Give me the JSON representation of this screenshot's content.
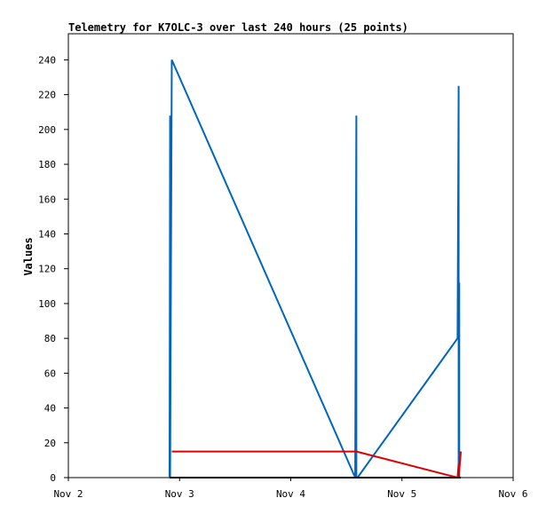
{
  "chart_data": {
    "type": "line",
    "title": "Telemetry for K7OLC-3 over last 240 hours (25 points)",
    "xlabel": "",
    "ylabel": "Values",
    "x_ticks": [
      "Nov 2",
      "Nov 3",
      "Nov 4",
      "Nov 5",
      "Nov 6"
    ],
    "y_ticks": [
      0,
      20,
      40,
      60,
      80,
      100,
      120,
      140,
      160,
      180,
      200,
      220,
      240
    ],
    "xlim": [
      0,
      4
    ],
    "ylim": [
      0,
      255
    ],
    "grid": false,
    "legend": "none",
    "series": [
      {
        "color": "#0066bb",
        "x": [
          0.91,
          0.915,
          0.915,
          0.93,
          2.58,
          2.59,
          2.59,
          2.6,
          3.5,
          3.51,
          3.51,
          3.515,
          3.515,
          3.52
        ],
        "y": [
          0,
          208,
          0,
          240,
          0,
          208,
          0,
          0,
          80,
          225,
          0,
          112,
          0,
          0
        ]
      },
      {
        "color": "#dd0000",
        "x": [
          0.93,
          2.59,
          3.5,
          3.51,
          3.51,
          3.53
        ],
        "y": [
          15,
          15,
          0,
          8,
          0,
          15
        ]
      },
      {
        "color": "#000000",
        "x": [
          0.91,
          3.53
        ],
        "y": [
          0,
          0
        ]
      }
    ]
  }
}
